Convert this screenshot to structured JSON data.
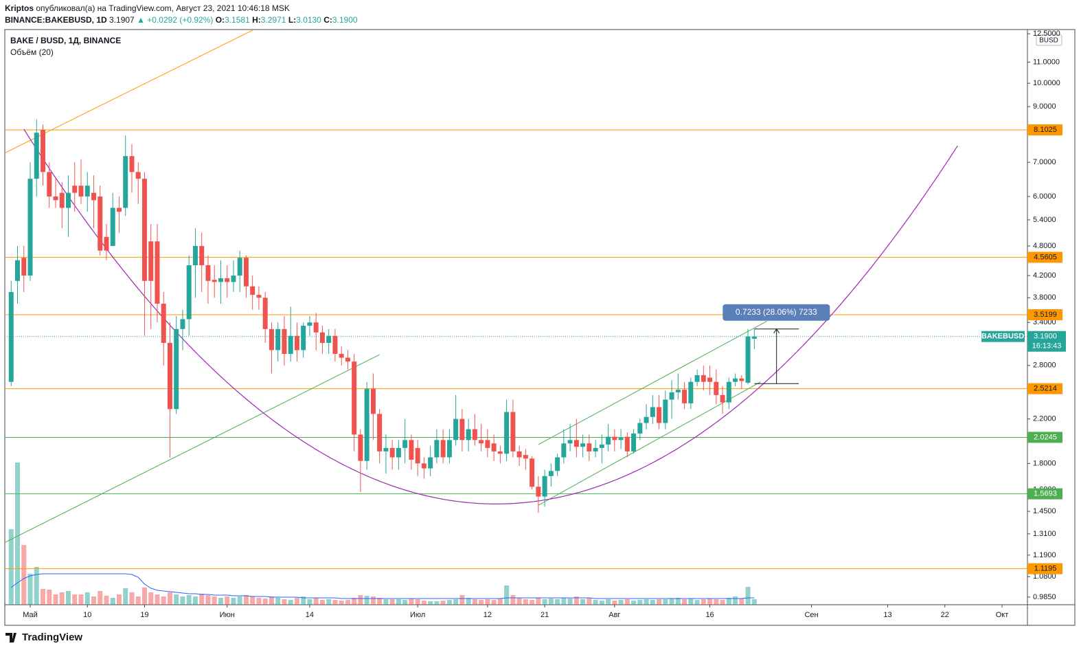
{
  "header": {
    "author": "Kriptos",
    "published": "опубликовал(а) на TradingView.com, Август 23, 2021 10:46:18 MSK",
    "symbol": "BINANCE:BAKEBUSD, 1D",
    "last": "3.1907",
    "change": "▲ +0.0292 (+0.92%)",
    "ohlc": [
      {
        "label": "O:",
        "value": "3.1581"
      },
      {
        "label": "H:",
        "value": "3.2971"
      },
      {
        "label": "L:",
        "value": "3.0130"
      },
      {
        "label": "C:",
        "value": "3.1900"
      }
    ]
  },
  "footer": {
    "logo": "TradingView"
  },
  "chart_data": {
    "type": "candlestick",
    "title": "BAKE / BUSD, 1Д, BINANCE",
    "volume_title": "Объём (20)",
    "currency": "BUSD",
    "symbol_badge": "BAKEBUSD",
    "countdown": "16:13:43",
    "up_color": "#26a69a",
    "down_color": "#ef5350",
    "log_scale": true,
    "grid": false,
    "x": [
      "2021-04-28",
      "2021-04-29",
      "2021-04-30",
      "2021-05-01",
      "2021-05-02",
      "2021-05-03",
      "2021-05-04",
      "2021-05-05",
      "2021-05-06",
      "2021-05-07",
      "2021-05-08",
      "2021-05-09",
      "2021-05-10",
      "2021-05-11",
      "2021-05-12",
      "2021-05-13",
      "2021-05-14",
      "2021-05-15",
      "2021-05-16",
      "2021-05-17",
      "2021-05-18",
      "2021-05-19",
      "2021-05-20",
      "2021-05-21",
      "2021-05-22",
      "2021-05-23",
      "2021-05-24",
      "2021-05-25",
      "2021-05-26",
      "2021-05-27",
      "2021-05-28",
      "2021-05-29",
      "2021-05-30",
      "2021-05-31",
      "2021-06-01",
      "2021-06-02",
      "2021-06-03",
      "2021-06-04",
      "2021-06-05",
      "2021-06-06",
      "2021-06-07",
      "2021-06-08",
      "2021-06-09",
      "2021-06-10",
      "2021-06-11",
      "2021-06-12",
      "2021-06-13",
      "2021-06-14",
      "2021-06-15",
      "2021-06-16",
      "2021-06-17",
      "2021-06-18",
      "2021-06-19",
      "2021-06-20",
      "2021-06-21",
      "2021-06-22",
      "2021-06-23",
      "2021-06-24",
      "2021-06-25",
      "2021-06-26",
      "2021-06-27",
      "2021-06-28",
      "2021-06-29",
      "2021-06-30",
      "2021-07-01",
      "2021-07-02",
      "2021-07-03",
      "2021-07-04",
      "2021-07-05",
      "2021-07-06",
      "2021-07-07",
      "2021-07-08",
      "2021-07-09",
      "2021-07-10",
      "2021-07-11",
      "2021-07-12",
      "2021-07-13",
      "2021-07-14",
      "2021-07-15",
      "2021-07-16",
      "2021-07-17",
      "2021-07-18",
      "2021-07-19",
      "2021-07-20",
      "2021-07-21",
      "2021-07-22",
      "2021-07-23",
      "2021-07-24",
      "2021-07-25",
      "2021-07-26",
      "2021-07-27",
      "2021-07-28",
      "2021-07-29",
      "2021-07-30",
      "2021-07-31",
      "2021-08-01",
      "2021-08-02",
      "2021-08-03",
      "2021-08-04",
      "2021-08-05",
      "2021-08-06",
      "2021-08-07",
      "2021-08-08",
      "2021-08-09",
      "2021-08-10",
      "2021-08-11",
      "2021-08-12",
      "2021-08-13",
      "2021-08-14",
      "2021-08-15",
      "2021-08-16",
      "2021-08-17",
      "2021-08-18",
      "2021-08-19",
      "2021-08-20",
      "2021-08-21",
      "2021-08-22",
      "2021-08-23"
    ],
    "open": [
      2.6,
      4.1,
      4.55,
      4.2,
      6.5,
      8.1,
      6.7,
      6.0,
      6.1,
      5.7,
      6.3,
      6.3,
      6.0,
      6.1,
      6.0,
      5.0,
      4.8,
      5.7,
      5.7,
      7.2,
      6.7,
      6.5,
      4.9,
      4.9,
      3.7,
      3.1,
      2.3,
      3.3,
      3.45,
      4.4,
      4.8,
      4.4,
      4.12,
      4.08,
      4.15,
      4.08,
      4.2,
      4.55,
      4.0,
      3.85,
      3.8,
      3.3,
      3.0,
      3.3,
      2.95,
      3.2,
      3.0,
      3.35,
      3.4,
      3.25,
      3.1,
      3.2,
      2.95,
      2.9,
      2.85,
      2.05,
      1.82,
      2.52,
      2.25,
      1.9,
      1.93,
      1.85,
      1.93,
      2.0,
      1.93,
      1.8,
      1.76,
      1.85,
      2.0,
      1.85,
      2.0,
      2.2,
      2.0,
      2.1,
      2.0,
      2.0,
      1.97,
      1.9,
      1.88,
      2.27,
      1.9,
      1.87,
      1.84,
      1.62,
      1.55,
      1.7,
      1.74,
      1.85,
      1.97,
      2.0,
      1.94,
      1.97,
      1.9,
      1.93,
      1.96,
      2.03,
      2.0,
      2.03,
      1.9,
      2.06,
      2.16,
      2.22,
      2.32,
      2.16,
      2.4,
      2.48,
      2.51,
      2.36,
      2.6,
      2.68,
      2.65,
      2.6,
      2.45,
      2.37,
      2.6,
      2.64,
      2.59,
      3.1581
    ],
    "high": [
      4.1,
      4.8,
      4.8,
      7.0,
      8.5,
      8.3,
      7.0,
      6.5,
      6.4,
      6.6,
      7.0,
      7.1,
      6.7,
      6.6,
      6.3,
      5.3,
      6.1,
      6.0,
      7.9,
      7.6,
      7.0,
      6.7,
      5.3,
      5.3,
      3.9,
      3.4,
      3.5,
      3.6,
      4.6,
      5.2,
      5.1,
      4.6,
      4.4,
      4.5,
      4.4,
      4.5,
      4.7,
      4.6,
      4.2,
      4.0,
      3.9,
      3.4,
      3.4,
      3.5,
      3.65,
      3.4,
      3.4,
      3.5,
      3.55,
      3.35,
      3.3,
      3.3,
      3.05,
      3.0,
      2.95,
      2.1,
      2.6,
      2.7,
      2.3,
      2.05,
      2.0,
      2.0,
      2.2,
      2.05,
      2.0,
      1.85,
      1.95,
      2.1,
      2.1,
      2.1,
      2.45,
      2.3,
      2.2,
      2.25,
      2.15,
      2.1,
      2.05,
      1.95,
      2.4,
      2.4,
      1.95,
      1.92,
      1.86,
      1.7,
      1.75,
      1.8,
      1.88,
      2.1,
      2.15,
      2.2,
      2.05,
      2.05,
      2.0,
      2.05,
      2.15,
      2.1,
      2.1,
      2.07,
      2.1,
      2.2,
      2.35,
      2.45,
      2.45,
      2.5,
      2.62,
      2.7,
      2.6,
      2.65,
      2.75,
      2.8,
      2.8,
      2.75,
      2.55,
      2.65,
      2.7,
      2.68,
      3.3,
      3.2971
    ],
    "low": [
      2.55,
      3.7,
      3.9,
      4.1,
      6.0,
      6.3,
      5.7,
      5.7,
      5.2,
      5.0,
      5.6,
      5.8,
      5.6,
      5.2,
      4.6,
      4.5,
      4.8,
      5.1,
      5.5,
      6.1,
      5.8,
      3.2,
      3.3,
      3.4,
      2.8,
      1.85,
      2.25,
      3.0,
      3.2,
      3.8,
      3.9,
      3.7,
      3.8,
      3.7,
      3.8,
      3.9,
      3.9,
      3.8,
      3.6,
      3.6,
      3.1,
      2.7,
      2.85,
      2.8,
      2.85,
      2.85,
      2.9,
      3.2,
      3.0,
      2.95,
      2.95,
      2.85,
      2.8,
      2.75,
      1.9,
      1.58,
      1.75,
      2.0,
      1.8,
      1.72,
      1.75,
      1.75,
      1.8,
      1.75,
      1.7,
      1.68,
      1.7,
      1.8,
      1.8,
      1.8,
      1.95,
      1.9,
      1.9,
      1.95,
      1.9,
      1.85,
      1.82,
      1.8,
      1.82,
      1.85,
      1.78,
      1.75,
      1.6,
      1.44,
      1.48,
      1.62,
      1.7,
      1.8,
      1.9,
      1.85,
      1.85,
      1.82,
      1.85,
      1.8,
      1.9,
      1.9,
      1.92,
      1.85,
      1.88,
      2.0,
      2.1,
      2.15,
      2.1,
      2.1,
      2.2,
      2.4,
      2.3,
      2.3,
      2.55,
      2.5,
      2.45,
      2.35,
      2.25,
      2.3,
      2.55,
      2.52,
      2.57,
      3.013
    ],
    "close": [
      3.9,
      4.5,
      4.2,
      6.5,
      8.0,
      6.7,
      6.0,
      5.9,
      5.7,
      6.1,
      6.1,
      6.0,
      6.3,
      5.9,
      4.7,
      4.7,
      5.7,
      5.6,
      7.2,
      6.7,
      6.5,
      4.1,
      4.1,
      3.7,
      3.1,
      2.3,
      3.3,
      3.45,
      4.4,
      4.8,
      4.4,
      4.1,
      4.08,
      4.15,
      4.08,
      4.2,
      4.55,
      4.0,
      3.85,
      3.8,
      3.3,
      3.0,
      3.3,
      2.95,
      3.2,
      3.0,
      3.35,
      3.4,
      3.25,
      3.1,
      3.2,
      2.95,
      2.9,
      2.85,
      2.05,
      1.82,
      2.52,
      2.25,
      1.9,
      1.93,
      1.85,
      1.93,
      2.0,
      1.83,
      1.8,
      1.76,
      1.85,
      2.0,
      1.85,
      2.0,
      2.2,
      2.0,
      2.1,
      2.0,
      1.97,
      1.93,
      1.9,
      1.88,
      2.27,
      1.9,
      1.85,
      1.84,
      1.62,
      1.55,
      1.7,
      1.74,
      1.85,
      1.97,
      2.0,
      1.94,
      1.97,
      1.9,
      1.93,
      1.96,
      2.03,
      2.0,
      2.02,
      1.9,
      2.06,
      2.16,
      2.22,
      2.32,
      2.16,
      2.4,
      2.48,
      2.51,
      2.36,
      2.6,
      2.68,
      2.6,
      2.6,
      2.45,
      2.37,
      2.6,
      2.64,
      2.61,
      3.19,
      3.19
    ],
    "volume": [
      110,
      207,
      87,
      45,
      55,
      23,
      22,
      15,
      18,
      20,
      15,
      15,
      18,
      12,
      20,
      13,
      10,
      15,
      24,
      18,
      12,
      25,
      18,
      15,
      12,
      18,
      15,
      12,
      14,
      12,
      16,
      14,
      12,
      10,
      12,
      10,
      12,
      14,
      12,
      10,
      9,
      12,
      10,
      8,
      7,
      10,
      12,
      8,
      10,
      7,
      8,
      7,
      6,
      7,
      10,
      14,
      13,
      12,
      10,
      8,
      8,
      8,
      7,
      9,
      8,
      6,
      5,
      5,
      6,
      7,
      8,
      14,
      10,
      8,
      7,
      8,
      7,
      9,
      28,
      14,
      10,
      8,
      7,
      10,
      8,
      9,
      8,
      10,
      9,
      12,
      8,
      10,
      7,
      6,
      8,
      6,
      7,
      8,
      6,
      7,
      8,
      7,
      8,
      8,
      9,
      10,
      8,
      9,
      7,
      8,
      9,
      8,
      7,
      10,
      12,
      9,
      26,
      8
    ],
    "volume_ma": [
      25,
      32,
      38,
      42,
      44,
      45,
      45,
      45,
      45,
      45,
      45,
      45,
      45,
      45,
      45,
      45,
      45,
      45,
      45,
      44,
      40,
      30,
      24,
      21,
      20,
      19,
      18,
      17,
      16,
      16,
      15,
      15,
      14,
      14,
      14,
      13,
      13,
      13,
      12,
      12,
      12,
      11,
      11,
      11,
      11,
      11,
      10,
      10,
      10,
      10,
      10,
      10,
      9,
      9,
      9,
      9,
      9,
      9,
      9,
      9,
      9,
      9,
      9,
      9,
      9,
      9,
      9,
      9,
      9,
      9,
      9,
      9,
      9,
      9,
      9,
      9,
      9,
      9,
      10,
      10,
      10,
      10,
      10,
      10,
      10,
      10,
      10,
      10,
      10,
      10,
      10,
      10,
      9,
      9,
      9,
      9,
      9,
      9,
      9,
      9,
      9,
      9,
      9,
      9,
      9,
      9,
      9,
      9,
      9,
      9,
      9,
      9,
      9,
      9,
      9,
      9,
      10,
      10
    ],
    "volume_ma_color": "#2962ff",
    "xlim": [
      "2021-04-27",
      "2021-10-05"
    ],
    "xticks": [
      {
        "value": "2021-05-01",
        "label": "Май"
      },
      {
        "value": "2021-05-10",
        "label": "10"
      },
      {
        "value": "2021-05-19",
        "label": "19"
      },
      {
        "value": "2021-06-01",
        "label": "Июн"
      },
      {
        "value": "2021-06-14",
        "label": "14"
      },
      {
        "value": "2021-07-01",
        "label": "Июл"
      },
      {
        "value": "2021-07-12",
        "label": "12"
      },
      {
        "value": "2021-07-21",
        "label": "21"
      },
      {
        "value": "2021-08-01",
        "label": "Авг"
      },
      {
        "value": "2021-08-16",
        "label": "16"
      },
      {
        "value": "2021-09-01",
        "label": "Сен"
      },
      {
        "value": "2021-09-13",
        "label": "13"
      },
      {
        "value": "2021-09-22",
        "label": "22"
      },
      {
        "value": "2021-10-01",
        "label": "Окт"
      }
    ],
    "ylim": [
      0.9516,
      12.74
    ],
    "yticks": [
      {
        "value": 12.5,
        "label": "12.5000"
      },
      {
        "value": 11,
        "label": "11.0000"
      },
      {
        "value": 10,
        "label": "10.0000"
      },
      {
        "value": 9,
        "label": "9.0000"
      },
      {
        "value": 7,
        "label": "7.0000"
      },
      {
        "value": 6,
        "label": "6.0000"
      },
      {
        "value": 5.4,
        "label": "5.4000"
      },
      {
        "value": 4.8,
        "label": "4.8000"
      },
      {
        "value": 4.2,
        "label": "4.2000"
      },
      {
        "value": 3.8,
        "label": "3.8000"
      },
      {
        "value": 3.4,
        "label": "3.4000"
      },
      {
        "value": 2.8,
        "label": "2.8000"
      },
      {
        "value": 2.2,
        "label": "2.2000"
      },
      {
        "value": 1.8,
        "label": "1.8000"
      },
      {
        "value": 1.6,
        "label": "1.6000"
      },
      {
        "value": 1.45,
        "label": "1.4500"
      },
      {
        "value": 1.31,
        "label": "1.3100"
      },
      {
        "value": 1.19,
        "label": "1.1900"
      },
      {
        "value": 1.08,
        "label": "1.0800"
      },
      {
        "value": 0.985,
        "label": "0.9850"
      }
    ],
    "levels": [
      {
        "value": 8.1025,
        "color": "#ff9800"
      },
      {
        "value": 4.5605,
        "color": "#ff9800"
      },
      {
        "value": 3.5199,
        "color": "#ff9800"
      },
      {
        "value": 2.5214,
        "color": "#ff9800"
      },
      {
        "value": 2.0245,
        "color": "#4caf50"
      },
      {
        "value": 1.5693,
        "color": "#4caf50"
      },
      {
        "value": 1.1195,
        "color": "#ff9800"
      }
    ],
    "last_price": {
      "value": 3.19,
      "label": "3.1900",
      "color": "#26a69a"
    },
    "trendlines": [
      {
        "color": "#ff9800",
        "points": [
          [
            "2021-04-27",
            7.3
          ],
          [
            "2021-06-05",
            12.7
          ]
        ]
      },
      {
        "color": "#4caf50",
        "points": [
          [
            "2021-04-27",
            1.26
          ],
          [
            "2021-06-25",
            2.94
          ]
        ]
      },
      {
        "color": "#4caf50",
        "points": [
          [
            "2021-07-20",
            1.96
          ],
          [
            "2021-08-25",
            3.42
          ]
        ]
      },
      {
        "color": "#4caf50",
        "points": [
          [
            "2021-07-20",
            1.49
          ],
          [
            "2021-08-24",
            2.6
          ]
        ]
      }
    ],
    "arc": {
      "color": "#9c27b0",
      "points": [
        [
          "2021-04-30",
          8.13
        ],
        [
          "2021-07-12",
          1.5
        ],
        [
          "2021-09-24",
          7.54
        ]
      ]
    },
    "measure": {
      "label": "0.7233 (28.06%) 7233",
      "x": [
        "2021-08-23",
        "2021-08-30"
      ],
      "price": [
        2.58,
        3.3
      ],
      "color": "#5b7fb9"
    }
  }
}
